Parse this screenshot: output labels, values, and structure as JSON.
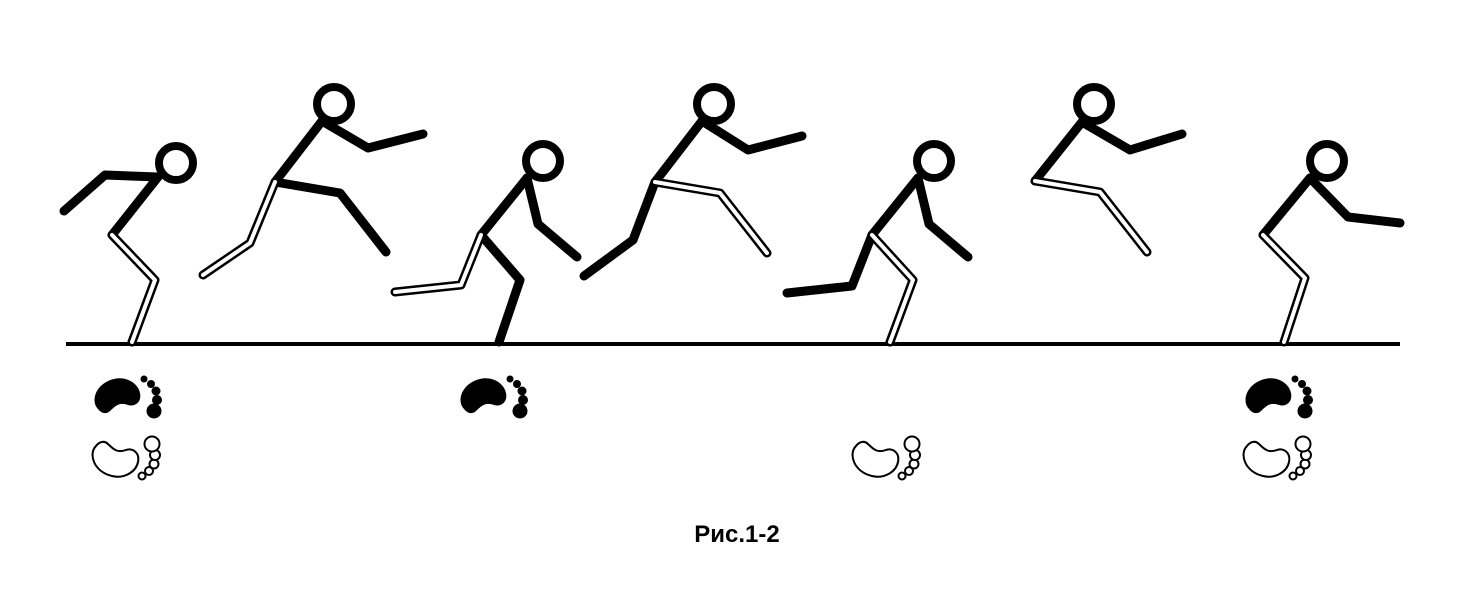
{
  "figure": {
    "caption": "Рис.1-2",
    "colors": {
      "ink": "#000000",
      "background": "#ffffff"
    },
    "icons": {
      "left_footprint": "footprint-left-filled-icon",
      "right_footprint": "footprint-right-outline-icon"
    }
  }
}
